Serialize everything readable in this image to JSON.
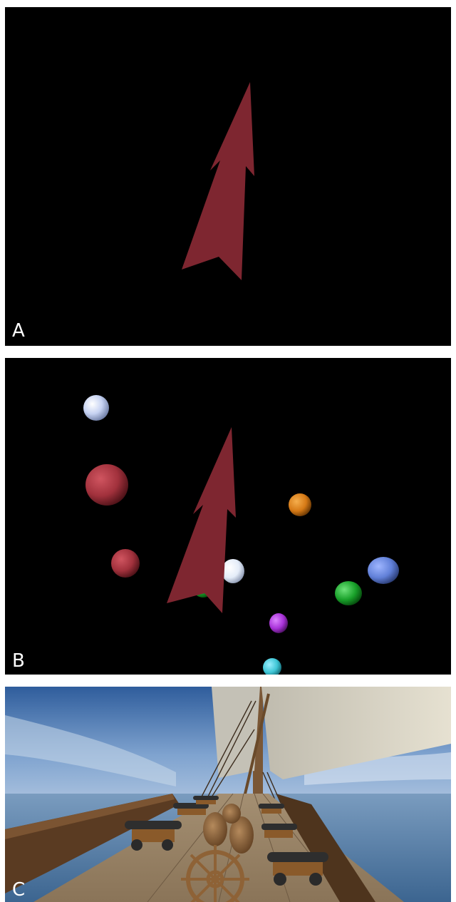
{
  "panels": [
    {
      "label": "A",
      "description_key": "arrow-only"
    },
    {
      "label": "B",
      "description_key": "arrow-with-spheres"
    },
    {
      "label": "C",
      "description_key": "ship-deck-scene"
    }
  ],
  "colors": {
    "arrow": "#7e2630",
    "background_dark": "#000000",
    "sky": "#3f6fa8",
    "sea": "#5f86ad",
    "wood": "#6b4a2e",
    "sail": "#d9d4c3"
  },
  "spheres": [
    {
      "name": "sphere-lavender-top-left",
      "color": "#c6d2f2"
    },
    {
      "name": "sphere-red-large",
      "color": "#a1313c"
    },
    {
      "name": "sphere-red-small",
      "color": "#9b2b35"
    },
    {
      "name": "sphere-orange",
      "color": "#d67a16"
    },
    {
      "name": "sphere-white-center",
      "color": "#e4ecf8"
    },
    {
      "name": "sphere-blue-right",
      "color": "#6180d8"
    },
    {
      "name": "sphere-green-right",
      "color": "#19a12a"
    },
    {
      "name": "sphere-green-behind-arrow",
      "color": "#1f8a2a"
    },
    {
      "name": "sphere-purple",
      "color": "#a832d8"
    },
    {
      "name": "sphere-cyan-bottom",
      "color": "#3fc6d6"
    }
  ]
}
